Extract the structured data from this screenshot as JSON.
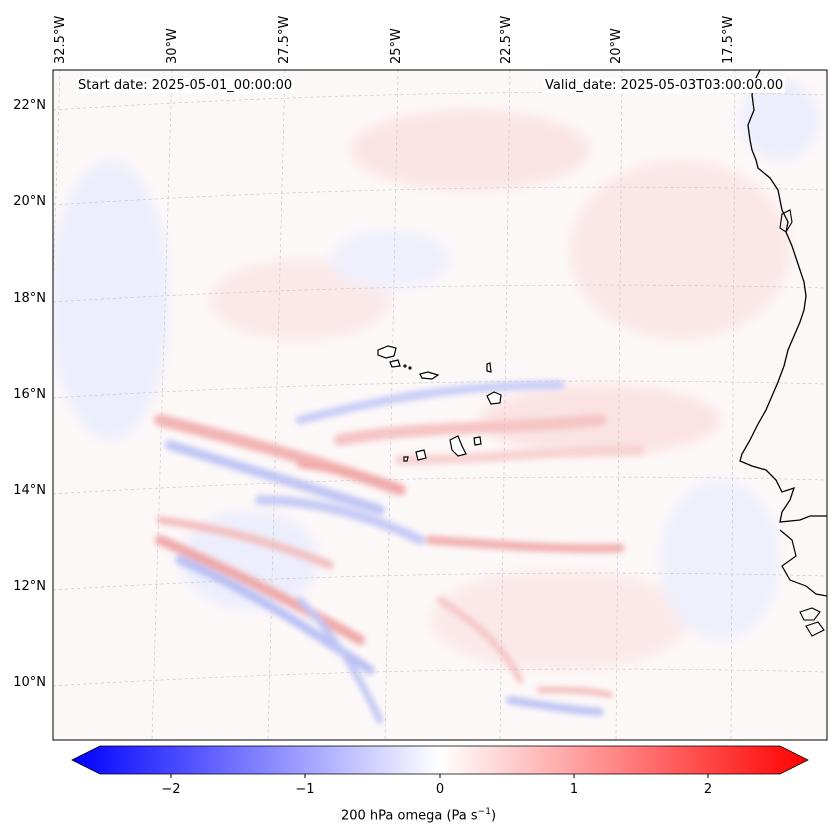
{
  "header": {
    "start_date": "Start date: 2025-05-01_00:00:00",
    "valid_date": "Valid_date: 2025-05-03T03:00:00.00"
  },
  "axes": {
    "lon_labels": [
      "32.5°W",
      "30°W",
      "27.5°W",
      "25°W",
      "22.5°W",
      "20°W",
      "17.5°W"
    ],
    "lat_labels": [
      "22°N",
      "20°N",
      "18°N",
      "16°N",
      "14°N",
      "12°N",
      "10°N"
    ]
  },
  "colorbar": {
    "ticks": [
      "−2",
      "−1",
      "0",
      "1",
      "2"
    ],
    "tick_values": [
      -2,
      -1,
      0,
      1,
      2
    ],
    "range": [
      -2.6,
      2.6
    ],
    "label_main": "200 hPa omega (Pa s",
    "label_sup": "−1",
    "label_end": ")",
    "min_color": "#0000ff",
    "mid_color": "#ffffff",
    "max_color": "#ff0000"
  },
  "map": {
    "coastline_color": "#000000",
    "gridline_color": "#c8c8c8",
    "field_description_colors": [
      "#f2a8a8",
      "#b8bff5",
      "#fbe3e3",
      "#e6e8fb"
    ]
  }
}
